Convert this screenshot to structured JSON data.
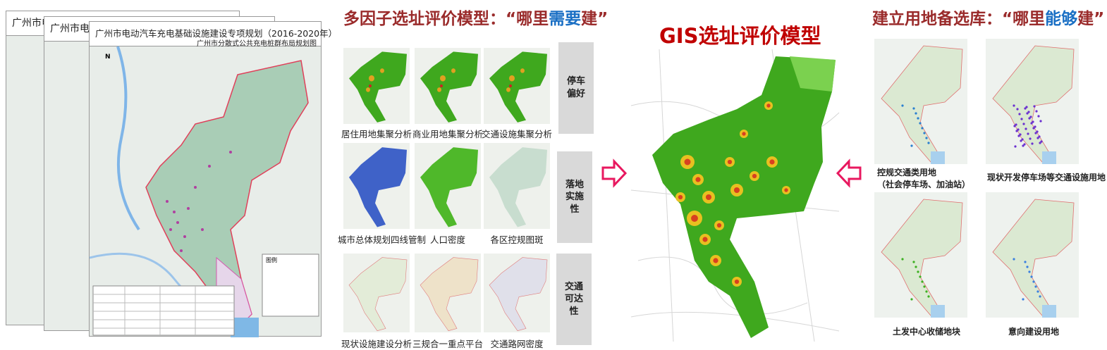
{
  "left_maps": {
    "sheet_title_truncated_1": "广州市电动",
    "sheet_title_truncated_2": "广州市电动汽",
    "sheet_title": "广州市电动汽车充电基础设施建设专项规划（2016-2020年）",
    "sheet_subtitle": "广州市分散式公共充电桩群布局规划图",
    "compass_label": "N",
    "legend_title": "图例"
  },
  "multi_factor": {
    "title_prefix": "多因子选址评价模型：“哪里",
    "title_highlight": "需要",
    "title_suffix": "建”",
    "thumbnails": [
      {
        "caption": "居住用地集聚分析"
      },
      {
        "caption": "商业用地集聚分析"
      },
      {
        "caption": "交通设施集聚分析"
      },
      {
        "caption": "城市总体规划四线管制"
      },
      {
        "caption": "人口密度"
      },
      {
        "caption": "各区控规图斑"
      },
      {
        "caption": "现状设施建设分析"
      },
      {
        "caption": "三规合一重点平台"
      },
      {
        "caption": "交通路网密度"
      }
    ],
    "categories": [
      {
        "label": "停车偏好"
      },
      {
        "label": "落地实施性"
      },
      {
        "label": "交通可达性"
      }
    ]
  },
  "gis_model": {
    "title": "GIS选址评价模型"
  },
  "land_bank": {
    "title_prefix": "建立用地备选库：“哪里",
    "title_highlight": "能够",
    "title_suffix": "建”",
    "maps": [
      {
        "caption": "控规交通类用地",
        "caption_line2": "（社会停车场、加油站）"
      },
      {
        "caption": "现状开发停车场等交通设施用地"
      },
      {
        "caption": "土发中心收储地块"
      },
      {
        "caption": "意向建设用地"
      }
    ]
  },
  "colors": {
    "title_red": "#9a2b2b",
    "gis_red": "#c00000",
    "highlight_blue": "#1a6fc4",
    "arrow_pink": "#e8185f",
    "heat_green": "#3fa81e"
  }
}
